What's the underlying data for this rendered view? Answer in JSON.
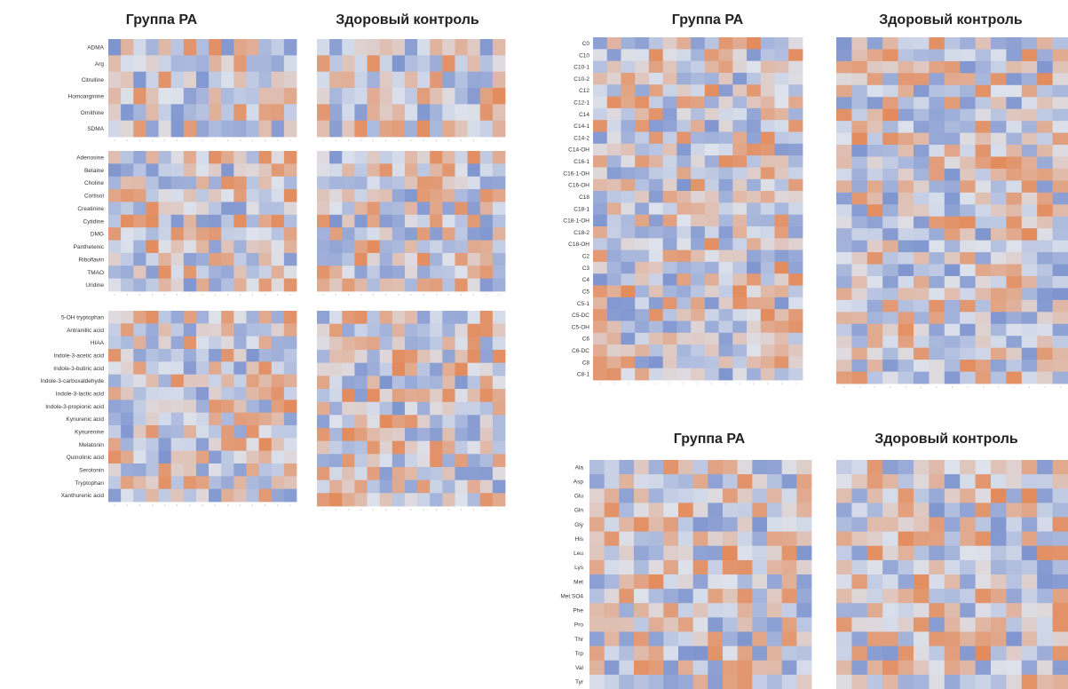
{
  "group_titles": {
    "ra": "Группа РА",
    "control": "Здоровый контроль"
  },
  "colors": {
    "low": "#7f95cf",
    "mid": "#dde2ec",
    "high": "#e38b5c"
  },
  "chart_data": [
    {
      "type": "heatmap",
      "panel": "amino-acid-derivatives",
      "groups": [
        "Группа РА",
        "Здоровый контроль"
      ],
      "rows": [
        "ADMA",
        "Arg",
        "Citrulline",
        "Homoarginine",
        "Ornithine",
        "SDMA"
      ],
      "columns": 15,
      "scale": "relative concentration (low = blue, high = orange)"
    },
    {
      "type": "heatmap",
      "panel": "nucleosides-vitamins",
      "groups": [
        "Группа РА",
        "Здоровый контроль"
      ],
      "rows": [
        "Adenosine",
        "Betaine",
        "Choline",
        "Cortisol",
        "Creatinine",
        "Cytidine",
        "DMG",
        "Panthetenic",
        "Riboflavin",
        "TMAO",
        "Uridine"
      ],
      "columns": 15,
      "scale": "relative concentration (low = blue, high = orange)"
    },
    {
      "type": "heatmap",
      "panel": "tryptophan-metabolites",
      "groups": [
        "Группа РА",
        "Здоровый контроль"
      ],
      "rows": [
        "5-OH tryptophan",
        "Antranillic acid",
        "HIAA",
        "Indole-3-acetic acid",
        "Indole-3-butiric acid",
        "Indole-3-carboxaldehyde",
        "Indole-3-lactic acid",
        "Indole-3-propionic acid",
        "Kynurenic acid",
        "Kynurenine",
        "Melatonin",
        "Quinolinic acid",
        "Serotonin",
        "Tryptophan",
        "Xanthurenic acid"
      ],
      "columns": 15,
      "scale": "relative concentration (low = blue, high = orange)"
    },
    {
      "type": "heatmap",
      "panel": "acylcarnitines",
      "groups": [
        "Группа РА",
        "Здоровый контроль"
      ],
      "rows": [
        "C0",
        "C10",
        "C10-1",
        "C10-2",
        "C12",
        "C12-1",
        "C14",
        "C14-1",
        "C14-2",
        "C14-OH",
        "C16-1",
        "C16-1-OH",
        "C16-OH",
        "C18",
        "C18-1",
        "C18-1-OH",
        "C18-2",
        "C18-OH",
        "C2",
        "C3",
        "C4",
        "C5",
        "C5-1",
        "C5-DC",
        "C5-OH",
        "C6",
        "C6-DC",
        "C8",
        "C8-1"
      ],
      "columns": 15,
      "scale": "relative concentration (low = blue, high = orange)"
    },
    {
      "type": "heatmap",
      "panel": "amino-acids",
      "groups": [
        "Группа РА",
        "Здоровый контроль"
      ],
      "rows": [
        "Ala",
        "Asp",
        "Glu",
        "Gln",
        "Gly",
        "His",
        "Leu",
        "Lys",
        "Met",
        "Met SO4",
        "Phe",
        "Pro",
        "Thr",
        "Trp",
        "Val",
        "Tyr"
      ],
      "columns": 15,
      "scale": "relative concentration (low = blue, high = orange)"
    }
  ]
}
